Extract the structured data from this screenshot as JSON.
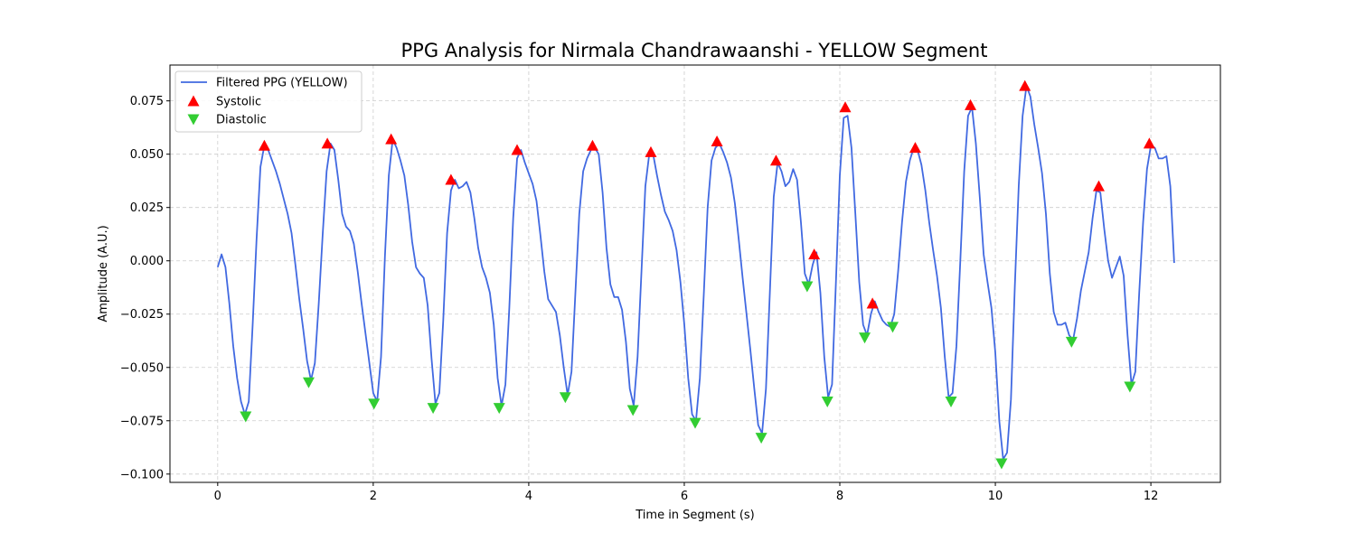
{
  "chart_data": {
    "type": "line",
    "title": "PPG Analysis for Nirmala Chandrawaanshi - YELLOW Segment",
    "xlabel": "Time in Segment (s)",
    "ylabel": "Amplitude (A.U.)",
    "xlim": [
      -0.614,
      12.894
    ],
    "ylim": [
      -0.1039,
      0.0918
    ],
    "xticks": [
      0,
      2,
      4,
      6,
      8,
      10,
      12
    ],
    "xtick_labels": [
      "0",
      "2",
      "4",
      "6",
      "8",
      "10",
      "12"
    ],
    "yticks": [
      -0.1,
      -0.075,
      -0.05,
      -0.025,
      0.0,
      0.025,
      0.05,
      0.075
    ],
    "ytick_labels": [
      "−0.100",
      "−0.075",
      "−0.050",
      "−0.025",
      "0.000",
      "0.025",
      "0.050",
      "0.075"
    ],
    "grid": true,
    "legend_position": "top-left",
    "colors": {
      "line": "#4169e1",
      "systolic": "#ff0000",
      "diastolic": "#32cd32"
    },
    "series": [
      {
        "name": "Filtered PPG (YELLOW)",
        "kind": "line",
        "points": [
          [
            0.0,
            -0.003
          ],
          [
            0.05,
            0.003
          ],
          [
            0.1,
            -0.003
          ],
          [
            0.15,
            -0.02
          ],
          [
            0.2,
            -0.04
          ],
          [
            0.25,
            -0.055
          ],
          [
            0.3,
            -0.066
          ],
          [
            0.35,
            -0.072
          ],
          [
            0.4,
            -0.066
          ],
          [
            0.45,
            -0.03
          ],
          [
            0.5,
            0.01
          ],
          [
            0.55,
            0.044
          ],
          [
            0.6,
            0.054
          ],
          [
            0.65,
            0.052
          ],
          [
            0.7,
            0.047
          ],
          [
            0.75,
            0.042
          ],
          [
            0.8,
            0.036
          ],
          [
            0.85,
            0.029
          ],
          [
            0.9,
            0.022
          ],
          [
            0.95,
            0.013
          ],
          [
            1.0,
            -0.002
          ],
          [
            1.05,
            -0.018
          ],
          [
            1.1,
            -0.032
          ],
          [
            1.15,
            -0.047
          ],
          [
            1.2,
            -0.056
          ],
          [
            1.25,
            -0.048
          ],
          [
            1.3,
            -0.02
          ],
          [
            1.35,
            0.012
          ],
          [
            1.4,
            0.042
          ],
          [
            1.45,
            0.055
          ],
          [
            1.5,
            0.052
          ],
          [
            1.55,
            0.038
          ],
          [
            1.6,
            0.022
          ],
          [
            1.65,
            0.016
          ],
          [
            1.7,
            0.014
          ],
          [
            1.75,
            0.008
          ],
          [
            1.8,
            -0.005
          ],
          [
            1.85,
            -0.02
          ],
          [
            1.9,
            -0.034
          ],
          [
            1.95,
            -0.048
          ],
          [
            2.0,
            -0.062
          ],
          [
            2.05,
            -0.066
          ],
          [
            2.1,
            -0.045
          ],
          [
            2.15,
            0.002
          ],
          [
            2.2,
            0.04
          ],
          [
            2.25,
            0.057
          ],
          [
            2.3,
            0.053
          ],
          [
            2.35,
            0.047
          ],
          [
            2.4,
            0.04
          ],
          [
            2.45,
            0.026
          ],
          [
            2.5,
            0.009
          ],
          [
            2.55,
            -0.003
          ],
          [
            2.6,
            -0.006
          ],
          [
            2.65,
            -0.008
          ],
          [
            2.7,
            -0.021
          ],
          [
            2.75,
            -0.046
          ],
          [
            2.8,
            -0.067
          ],
          [
            2.85,
            -0.062
          ],
          [
            2.9,
            -0.028
          ],
          [
            2.95,
            0.013
          ],
          [
            3.0,
            0.033
          ],
          [
            3.05,
            0.038
          ],
          [
            3.1,
            0.034
          ],
          [
            3.15,
            0.035
          ],
          [
            3.2,
            0.037
          ],
          [
            3.25,
            0.032
          ],
          [
            3.3,
            0.02
          ],
          [
            3.35,
            0.006
          ],
          [
            3.4,
            -0.003
          ],
          [
            3.45,
            -0.008
          ],
          [
            3.5,
            -0.015
          ],
          [
            3.55,
            -0.03
          ],
          [
            3.6,
            -0.055
          ],
          [
            3.65,
            -0.068
          ],
          [
            3.7,
            -0.058
          ],
          [
            3.75,
            -0.022
          ],
          [
            3.8,
            0.02
          ],
          [
            3.85,
            0.048
          ],
          [
            3.9,
            0.052
          ],
          [
            3.95,
            0.046
          ],
          [
            4.0,
            0.041
          ],
          [
            4.05,
            0.036
          ],
          [
            4.1,
            0.028
          ],
          [
            4.15,
            0.012
          ],
          [
            4.2,
            -0.005
          ],
          [
            4.25,
            -0.018
          ],
          [
            4.3,
            -0.021
          ],
          [
            4.35,
            -0.024
          ],
          [
            4.4,
            -0.035
          ],
          [
            4.45,
            -0.05
          ],
          [
            4.5,
            -0.063
          ],
          [
            4.55,
            -0.052
          ],
          [
            4.6,
            -0.015
          ],
          [
            4.65,
            0.022
          ],
          [
            4.7,
            0.042
          ],
          [
            4.75,
            0.048
          ],
          [
            4.8,
            0.052
          ],
          [
            4.85,
            0.053
          ],
          [
            4.9,
            0.05
          ],
          [
            4.95,
            0.032
          ],
          [
            5.0,
            0.006
          ],
          [
            5.05,
            -0.011
          ],
          [
            5.1,
            -0.017
          ],
          [
            5.15,
            -0.017
          ],
          [
            5.2,
            -0.023
          ],
          [
            5.25,
            -0.038
          ],
          [
            5.3,
            -0.06
          ],
          [
            5.35,
            -0.068
          ],
          [
            5.4,
            -0.045
          ],
          [
            5.45,
            -0.005
          ],
          [
            5.5,
            0.035
          ],
          [
            5.55,
            0.05
          ],
          [
            5.6,
            0.05
          ],
          [
            5.65,
            0.04
          ],
          [
            5.7,
            0.031
          ],
          [
            5.75,
            0.023
          ],
          [
            5.8,
            0.019
          ],
          [
            5.85,
            0.014
          ],
          [
            5.9,
            0.005
          ],
          [
            5.95,
            -0.01
          ],
          [
            6.0,
            -0.03
          ],
          [
            6.05,
            -0.055
          ],
          [
            6.1,
            -0.072
          ],
          [
            6.15,
            -0.075
          ],
          [
            6.2,
            -0.055
          ],
          [
            6.25,
            -0.016
          ],
          [
            6.3,
            0.025
          ],
          [
            6.35,
            0.047
          ],
          [
            6.4,
            0.053
          ],
          [
            6.45,
            0.055
          ],
          [
            6.5,
            0.051
          ],
          [
            6.55,
            0.046
          ],
          [
            6.6,
            0.039
          ],
          [
            6.65,
            0.027
          ],
          [
            6.7,
            0.01
          ],
          [
            6.75,
            -0.008
          ],
          [
            6.8,
            -0.025
          ],
          [
            6.85,
            -0.042
          ],
          [
            6.9,
            -0.06
          ],
          [
            6.95,
            -0.077
          ],
          [
            7.0,
            -0.081
          ],
          [
            7.05,
            -0.06
          ],
          [
            7.1,
            -0.015
          ],
          [
            7.15,
            0.03
          ],
          [
            7.2,
            0.046
          ],
          [
            7.25,
            0.042
          ],
          [
            7.3,
            0.035
          ],
          [
            7.35,
            0.037
          ],
          [
            7.4,
            0.043
          ],
          [
            7.45,
            0.038
          ],
          [
            7.5,
            0.018
          ],
          [
            7.55,
            -0.006
          ],
          [
            7.6,
            -0.011
          ],
          [
            7.65,
            -0.002
          ],
          [
            7.7,
            0.004
          ],
          [
            7.75,
            -0.015
          ],
          [
            7.8,
            -0.045
          ],
          [
            7.85,
            -0.064
          ],
          [
            7.9,
            -0.058
          ],
          [
            7.95,
            -0.01
          ],
          [
            8.0,
            0.04
          ],
          [
            8.05,
            0.067
          ],
          [
            8.1,
            0.068
          ],
          [
            8.15,
            0.053
          ],
          [
            8.2,
            0.022
          ],
          [
            8.25,
            -0.01
          ],
          [
            8.3,
            -0.03
          ],
          [
            8.35,
            -0.035
          ],
          [
            8.4,
            -0.025
          ],
          [
            8.45,
            -0.019
          ],
          [
            8.5,
            -0.024
          ],
          [
            8.55,
            -0.028
          ],
          [
            8.6,
            -0.03
          ],
          [
            8.65,
            -0.031
          ],
          [
            8.7,
            -0.025
          ],
          [
            8.75,
            -0.005
          ],
          [
            8.8,
            0.018
          ],
          [
            8.85,
            0.037
          ],
          [
            8.9,
            0.047
          ],
          [
            8.95,
            0.053
          ],
          [
            9.0,
            0.052
          ],
          [
            9.05,
            0.045
          ],
          [
            9.1,
            0.033
          ],
          [
            9.15,
            0.018
          ],
          [
            9.2,
            0.005
          ],
          [
            9.25,
            -0.007
          ],
          [
            9.3,
            -0.022
          ],
          [
            9.35,
            -0.045
          ],
          [
            9.4,
            -0.064
          ],
          [
            9.45,
            -0.062
          ],
          [
            9.5,
            -0.04
          ],
          [
            9.55,
            0.0
          ],
          [
            9.6,
            0.042
          ],
          [
            9.65,
            0.068
          ],
          [
            9.7,
            0.072
          ],
          [
            9.75,
            0.055
          ],
          [
            9.8,
            0.03
          ],
          [
            9.85,
            0.003
          ],
          [
            9.9,
            -0.01
          ],
          [
            9.95,
            -0.022
          ],
          [
            10.0,
            -0.043
          ],
          [
            10.05,
            -0.075
          ],
          [
            10.1,
            -0.093
          ],
          [
            10.15,
            -0.09
          ],
          [
            10.2,
            -0.065
          ],
          [
            10.25,
            -0.012
          ],
          [
            10.3,
            0.035
          ],
          [
            10.35,
            0.068
          ],
          [
            10.4,
            0.082
          ],
          [
            10.45,
            0.077
          ],
          [
            10.5,
            0.064
          ],
          [
            10.55,
            0.053
          ],
          [
            10.6,
            0.041
          ],
          [
            10.65,
            0.022
          ],
          [
            10.7,
            -0.006
          ],
          [
            10.75,
            -0.024
          ],
          [
            10.8,
            -0.03
          ],
          [
            10.85,
            -0.03
          ],
          [
            10.9,
            -0.029
          ],
          [
            10.95,
            -0.035
          ],
          [
            11.0,
            -0.037
          ],
          [
            11.05,
            -0.027
          ],
          [
            11.1,
            -0.014
          ],
          [
            11.15,
            -0.005
          ],
          [
            11.2,
            0.004
          ],
          [
            11.25,
            0.02
          ],
          [
            11.3,
            0.033
          ],
          [
            11.35,
            0.032
          ],
          [
            11.4,
            0.015
          ],
          [
            11.45,
            0.0
          ],
          [
            11.5,
            -0.008
          ],
          [
            11.55,
            -0.003
          ],
          [
            11.6,
            0.002
          ],
          [
            11.65,
            -0.007
          ],
          [
            11.7,
            -0.035
          ],
          [
            11.75,
            -0.058
          ],
          [
            11.8,
            -0.052
          ],
          [
            11.85,
            -0.015
          ],
          [
            11.9,
            0.018
          ],
          [
            11.95,
            0.043
          ],
          [
            12.0,
            0.054
          ],
          [
            12.05,
            0.053
          ],
          [
            12.1,
            0.048
          ],
          [
            12.15,
            0.048
          ],
          [
            12.2,
            0.049
          ],
          [
            12.25,
            0.035
          ],
          [
            12.3,
            -0.001
          ]
        ]
      },
      {
        "name": "Systolic",
        "kind": "marker-up",
        "points": [
          [
            0.6,
            0.054
          ],
          [
            1.41,
            0.055
          ],
          [
            2.23,
            0.057
          ],
          [
            3.0,
            0.038
          ],
          [
            3.85,
            0.052
          ],
          [
            4.82,
            0.054
          ],
          [
            5.57,
            0.051
          ],
          [
            6.42,
            0.056
          ],
          [
            7.18,
            0.047
          ],
          [
            7.67,
            0.003
          ],
          [
            8.07,
            0.072
          ],
          [
            8.42,
            -0.02
          ],
          [
            8.97,
            0.053
          ],
          [
            9.68,
            0.073
          ],
          [
            10.38,
            0.082
          ],
          [
            11.33,
            0.035
          ],
          [
            11.98,
            0.055
          ]
        ]
      },
      {
        "name": "Diastolic",
        "kind": "marker-down",
        "points": [
          [
            0.36,
            -0.073
          ],
          [
            1.17,
            -0.057
          ],
          [
            2.01,
            -0.067
          ],
          [
            2.77,
            -0.069
          ],
          [
            3.62,
            -0.069
          ],
          [
            4.47,
            -0.064
          ],
          [
            5.34,
            -0.07
          ],
          [
            6.14,
            -0.076
          ],
          [
            6.99,
            -0.083
          ],
          [
            7.58,
            -0.012
          ],
          [
            7.84,
            -0.066
          ],
          [
            8.32,
            -0.036
          ],
          [
            8.68,
            -0.031
          ],
          [
            9.43,
            -0.066
          ],
          [
            10.08,
            -0.095
          ],
          [
            10.98,
            -0.038
          ],
          [
            11.73,
            -0.059
          ]
        ]
      }
    ]
  }
}
